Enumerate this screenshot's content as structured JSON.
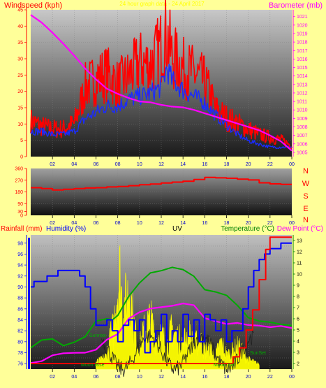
{
  "header": {
    "windspeed_label": "Windspeed (kph)",
    "center_title": "24 hour graph data - 24 April 2017",
    "barometer_label": "Barometer (mb)"
  },
  "wind_dir_labels": [
    "N",
    "W",
    "S",
    "E",
    "N"
  ],
  "bottom_header": {
    "rainfall_label": "Rainfall (mm)",
    "humidity_label": "Humidity (%)",
    "uv_label": "UV",
    "temperature_label": "Temperature (°C)",
    "dewpoint_label": "Dew Point (°C)"
  },
  "annotations": {
    "sunrise": "Sunrise",
    "sunset": "SunSet",
    "moonrise": "Moon Rise",
    "moonset": "Moon Set"
  },
  "x_ticks": [
    "02",
    "04",
    "06",
    "08",
    "10",
    "12",
    "14",
    "16",
    "18",
    "20",
    "22",
    "00"
  ],
  "colors": {
    "page_bg": "#ffff99",
    "gust": "#ff0000",
    "wind_avg": "#1a2bff",
    "barometer": "#ff00ff",
    "direction": "#ff0000",
    "humidity": "#0000ff",
    "temperature": "#00aa00",
    "dewpoint": "#ff00ff",
    "rain": "#ff0000",
    "uv": "#ffff00",
    "axis_red": "#ff0000",
    "axis_blue": "#0000ff",
    "axis_magenta": "#ff00ff",
    "axis_green": "#008000"
  },
  "chart_data": [
    {
      "type": "line",
      "name": "wind",
      "x_unit": "hour",
      "xlim": [
        0,
        24
      ],
      "left_axis": {
        "label": "Windspeed (kph)",
        "ylim": [
          0,
          45
        ],
        "ticks": [
          0,
          5,
          10,
          15,
          20,
          25,
          30,
          35,
          40,
          45
        ]
      },
      "right_axis": {
        "label": "Barometer (mb)",
        "ylim": [
          1004.5,
          1021.8
        ],
        "ticks": [
          1005,
          1006,
          1007,
          1008,
          1009,
          1010,
          1011,
          1012,
          1013,
          1014,
          1015,
          1016,
          1017,
          1018,
          1019,
          1020,
          1021
        ]
      },
      "series": [
        {
          "key": "gust",
          "axis": "left",
          "x": [
            0,
            1,
            2,
            3,
            4,
            4.5,
            5,
            6,
            7,
            8,
            9,
            10,
            11,
            12,
            12.5,
            13,
            14,
            15,
            16,
            17,
            18,
            19,
            20,
            21,
            22,
            23,
            24
          ],
          "values": [
            13,
            11,
            10,
            10,
            12,
            18,
            25,
            28,
            30,
            26,
            29,
            34,
            33,
            40,
            44,
            36,
            32,
            30,
            27,
            17,
            14,
            12,
            10,
            8,
            7,
            6,
            4
          ]
        },
        {
          "key": "average",
          "axis": "left",
          "x": [
            0,
            1,
            2,
            3,
            4,
            5,
            6,
            7,
            8,
            9,
            10,
            11,
            12,
            12.5,
            13,
            14,
            15,
            16,
            17,
            18,
            19,
            20,
            21,
            22,
            23,
            24
          ],
          "values": [
            8,
            8,
            7,
            7,
            8,
            12,
            14,
            16,
            16,
            18,
            19,
            20,
            22,
            28,
            24,
            21,
            19,
            17,
            13,
            10,
            7,
            5,
            4,
            3,
            3,
            3
          ]
        },
        {
          "key": "barometer",
          "axis": "right",
          "x": [
            0,
            1,
            2,
            3,
            4,
            5,
            6,
            7,
            8,
            9,
            10,
            11,
            12,
            13,
            14,
            15,
            16,
            17,
            18,
            19,
            20,
            21,
            22,
            23,
            24
          ],
          "values": [
            1021.2,
            1020.3,
            1019.1,
            1017.8,
            1016.4,
            1014.9,
            1013.6,
            1012.5,
            1011.9,
            1011.4,
            1011.0,
            1010.9,
            1010.6,
            1010.4,
            1010.3,
            1010.0,
            1009.6,
            1009.2,
            1008.8,
            1008.4,
            1008.0,
            1007.6,
            1007.0,
            1006.3,
            1005.2
          ]
        }
      ]
    },
    {
      "type": "line",
      "name": "direction",
      "x_unit": "hour",
      "xlim": [
        0,
        24
      ],
      "ylim": [
        0,
        360
      ],
      "y_ticks": [
        0,
        30,
        90,
        180,
        270,
        360
      ],
      "series": [
        {
          "key": "direction",
          "x": [
            0,
            1,
            2,
            3,
            4,
            5,
            6,
            7,
            8,
            9,
            10,
            11,
            12,
            13,
            14,
            15,
            16,
            17,
            18,
            19,
            20,
            21,
            22,
            23,
            24
          ],
          "values": [
            212,
            205,
            195,
            200,
            205,
            210,
            212,
            218,
            222,
            228,
            235,
            240,
            248,
            255,
            262,
            275,
            292,
            288,
            285,
            278,
            272,
            250,
            242,
            238,
            238
          ]
        }
      ]
    },
    {
      "type": "line",
      "name": "conditions",
      "x_unit": "hour",
      "xlim": [
        0,
        24
      ],
      "left_axis": {
        "label": "Humidity (%)",
        "ylim": [
          75,
          99.5
        ],
        "ticks": [
          76,
          78,
          80,
          82,
          84,
          86,
          88,
          90,
          92,
          94,
          96,
          98
        ]
      },
      "right_axis": {
        "label": "Temperature (°C)",
        "ylim": [
          1.5,
          13.5
        ],
        "ticks": [
          2,
          3,
          4,
          5,
          6,
          7,
          8,
          9,
          10,
          11,
          12,
          13
        ]
      },
      "series": [
        {
          "key": "humidity",
          "axis": "left",
          "x": [
            0,
            0.3,
            1,
            1.5,
            2,
            2.5,
            3,
            4,
            4.5,
            5,
            5.5,
            6,
            6.5,
            7,
            7.5,
            8,
            8.5,
            9,
            9.5,
            10,
            10.5,
            11,
            11.5,
            12,
            12.5,
            13,
            13.5,
            14,
            14.5,
            15,
            15.5,
            16,
            16.5,
            17,
            17.5,
            18,
            18.5,
            19,
            19.5,
            20,
            20.5,
            21,
            21.5,
            22,
            23,
            24
          ],
          "values": [
            90,
            91,
            91,
            92,
            92,
            93,
            93,
            93,
            92,
            90,
            86,
            83,
            83,
            84,
            82,
            80,
            83,
            84,
            82,
            84,
            78,
            80,
            82,
            85,
            80,
            82,
            80,
            85,
            81,
            84,
            80,
            85,
            84,
            82,
            84,
            80,
            82,
            82,
            86,
            90,
            93,
            95,
            96,
            97,
            98,
            98
          ]
        },
        {
          "key": "temperature",
          "axis": "right",
          "x": [
            0,
            1,
            2,
            3,
            4,
            5,
            6,
            7,
            7.5,
            8,
            9,
            10,
            11,
            12,
            13,
            14,
            15,
            16,
            17,
            18,
            19,
            20,
            21,
            22,
            23,
            24
          ],
          "values": [
            3.4,
            4.1,
            4.2,
            3.6,
            3.9,
            4.4,
            5.8,
            6.0,
            5.9,
            6.3,
            8.0,
            9.2,
            10.1,
            10.3,
            10.6,
            10.4,
            9.8,
            8.6,
            8.4,
            8.1,
            7.2,
            6.1,
            5.8,
            5.7,
            5.5,
            5.4
          ]
        },
        {
          "key": "dewpoint",
          "axis": "right",
          "x": [
            0,
            1,
            2,
            3,
            4,
            5,
            6,
            7,
            8,
            9,
            10,
            11,
            12,
            13,
            14,
            15,
            16,
            17,
            18,
            19,
            20,
            21,
            22,
            23,
            24
          ],
          "values": [
            2.1,
            2.2,
            2.7,
            2.9,
            2.9,
            3.0,
            3.3,
            4.2,
            4.6,
            6.0,
            6.6,
            6.9,
            7.0,
            7.2,
            7.4,
            7.2,
            6.0,
            5.8,
            5.5,
            5.6,
            5.5,
            5.4,
            5.3,
            5.3,
            5.2
          ]
        },
        {
          "key": "rain",
          "axis": "right",
          "x": [
            0,
            18,
            18.6,
            19.2,
            19.8,
            20.4,
            21,
            21.6,
            22,
            24
          ],
          "values": [
            2,
            2,
            2.6,
            3.4,
            5.0,
            6.8,
            9.5,
            12.2,
            13.3,
            13.3
          ]
        },
        {
          "key": "uv",
          "axis": "left",
          "x": [
            6,
            6.5,
            7,
            7.3,
            7.6,
            7.9,
            8.2,
            8.5,
            8.8,
            9.1,
            9.4,
            9.7,
            10,
            10.5,
            11,
            11.5,
            12,
            12.5,
            13,
            13.5,
            14,
            14.5,
            15,
            15.5,
            16,
            16.5,
            17,
            17.5,
            18,
            18.5,
            19,
            19.5,
            20,
            20.5,
            21
          ],
          "values": [
            76.5,
            77,
            78,
            82,
            84,
            92,
            96,
            88,
            90,
            94,
            86,
            82,
            80,
            84,
            86,
            82,
            83,
            80,
            84,
            82,
            81,
            83,
            80,
            82,
            79,
            80,
            78,
            81,
            78,
            79,
            80,
            79,
            77,
            76.5,
            76
          ]
        }
      ]
    }
  ]
}
